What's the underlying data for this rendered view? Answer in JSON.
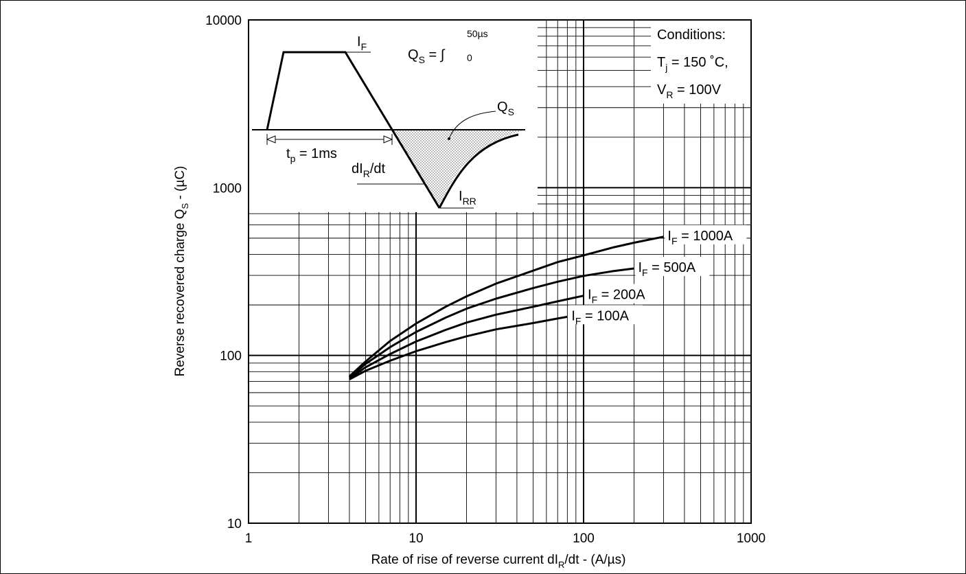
{
  "chart_data": {
    "type": "line",
    "x_scale": "log",
    "y_scale": "log",
    "xlim": [
      1,
      1000
    ],
    "ylim": [
      10,
      10000
    ],
    "grid": true,
    "x_ticks": [
      "1",
      "10",
      "100",
      "1000"
    ],
    "y_ticks": [
      "10",
      "100",
      "1000",
      "10000"
    ],
    "xlabel": {
      "main": "Rate of rise of reverse current dI",
      "sub": "R",
      "rest": "/dt - (A/µs)"
    },
    "ylabel": {
      "main": "Reverse recovered charge Q",
      "sub": "S",
      "rest": " - (µC)"
    },
    "series": [
      {
        "name": "I_F = 1000A",
        "label_main": "I",
        "label_sub": "F",
        "label_rest": " = 1000A",
        "points": [
          [
            4,
            75
          ],
          [
            5,
            92
          ],
          [
            7,
            122
          ],
          [
            10,
            155
          ],
          [
            15,
            195
          ],
          [
            20,
            225
          ],
          [
            30,
            268
          ],
          [
            50,
            320
          ],
          [
            70,
            360
          ],
          [
            100,
            395
          ],
          [
            150,
            440
          ],
          [
            200,
            470
          ],
          [
            300,
            510
          ]
        ]
      },
      {
        "name": "I_F = 500A",
        "label_main": "I",
        "label_sub": "F",
        "label_rest": " = 500A",
        "points": [
          [
            4,
            74
          ],
          [
            5,
            89
          ],
          [
            7,
            112
          ],
          [
            10,
            138
          ],
          [
            15,
            168
          ],
          [
            20,
            190
          ],
          [
            30,
            218
          ],
          [
            50,
            252
          ],
          [
            70,
            275
          ],
          [
            100,
            298
          ],
          [
            150,
            318
          ],
          [
            200,
            330
          ]
        ]
      },
      {
        "name": "I_F = 200A",
        "label_main": "I",
        "label_sub": "F",
        "label_rest": " = 200A",
        "points": [
          [
            4,
            73
          ],
          [
            5,
            85
          ],
          [
            7,
            102
          ],
          [
            10,
            121
          ],
          [
            15,
            142
          ],
          [
            20,
            157
          ],
          [
            30,
            175
          ],
          [
            50,
            195
          ],
          [
            70,
            210
          ],
          [
            100,
            227
          ]
        ]
      },
      {
        "name": "I_F = 100A",
        "label_main": "I",
        "label_sub": "F",
        "label_rest": " = 100A",
        "points": [
          [
            4,
            72
          ],
          [
            5,
            81
          ],
          [
            7,
            93
          ],
          [
            10,
            106
          ],
          [
            15,
            120
          ],
          [
            20,
            130
          ],
          [
            30,
            143
          ],
          [
            50,
            156
          ],
          [
            70,
            166
          ],
          [
            80,
            170
          ]
        ]
      }
    ],
    "conditions": {
      "title": "Conditions:",
      "line1_main": "T",
      "line1_sub": "j",
      "line1_rest": " = 150 ˚C,",
      "line2_main": "V",
      "line2_sub": "R",
      "line2_rest": " = 100V"
    },
    "inset": {
      "if_main": "I",
      "if_sub": "F",
      "qs_eq_main": "Q",
      "qs_eq_sub": "S",
      "qs_eq_rest": " = ∫",
      "qs_eq_upper": "50µs",
      "qs_eq_lower": "0",
      "qs_main": "Q",
      "qs_sub": "S",
      "tp_main": "t",
      "tp_sub": "p",
      "tp_rest": " = 1ms",
      "dir_main": "dI",
      "dir_sub": "R",
      "dir_rest": "/dt",
      "irr_main": "I",
      "irr_sub": "RR"
    }
  }
}
